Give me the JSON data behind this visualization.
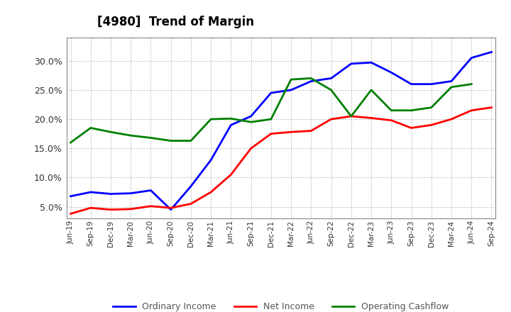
{
  "title": "[4980]  Trend of Margin",
  "x_labels": [
    "Jun-19",
    "Sep-19",
    "Dec-19",
    "Mar-20",
    "Jun-20",
    "Sep-20",
    "Dec-20",
    "Mar-21",
    "Jun-21",
    "Sep-21",
    "Dec-21",
    "Mar-22",
    "Jun-22",
    "Sep-22",
    "Dec-22",
    "Mar-23",
    "Jun-23",
    "Sep-23",
    "Dec-23",
    "Mar-24",
    "Jun-24",
    "Sep-24"
  ],
  "ordinary_income": [
    6.8,
    7.5,
    7.2,
    7.3,
    7.8,
    4.5,
    8.5,
    13.0,
    19.0,
    20.5,
    24.5,
    25.0,
    26.5,
    27.0,
    29.5,
    29.7,
    28.0,
    26.0,
    26.0,
    26.5,
    30.5,
    31.5
  ],
  "net_income": [
    3.8,
    4.8,
    4.5,
    4.6,
    5.1,
    4.8,
    5.5,
    7.5,
    10.5,
    15.0,
    17.5,
    17.8,
    18.0,
    20.0,
    20.5,
    20.2,
    19.8,
    18.5,
    19.0,
    20.0,
    21.5,
    22.0
  ],
  "operating_cashflow": [
    16.0,
    18.5,
    17.8,
    17.2,
    16.8,
    16.3,
    16.3,
    20.0,
    20.1,
    19.5,
    20.0,
    26.8,
    27.0,
    25.0,
    20.5,
    25.0,
    21.5,
    21.5,
    22.0,
    25.5,
    26.0,
    null
  ],
  "ylim": [
    3.0,
    34.0
  ],
  "yticks": [
    5.0,
    10.0,
    15.0,
    20.0,
    25.0,
    30.0
  ],
  "line_colors": {
    "ordinary_income": "#0000FF",
    "net_income": "#FF0000",
    "operating_cashflow": "#008000"
  },
  "line_width": 2.0,
  "background_color": "#FFFFFF",
  "grid_color": "#AAAAAA",
  "legend_labels": [
    "Ordinary Income",
    "Net Income",
    "Operating Cashflow"
  ]
}
